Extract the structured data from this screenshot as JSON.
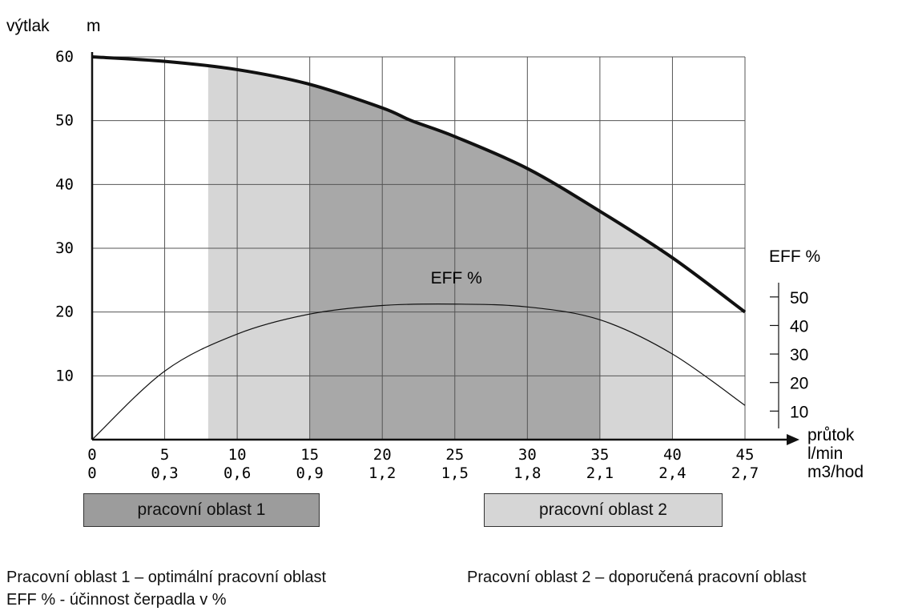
{
  "chart_data": {
    "type": "line",
    "y_label": "výtlak",
    "y_unit": "m",
    "y_ticks": [
      0,
      10,
      20,
      30,
      40,
      50,
      60
    ],
    "ylim": [
      0,
      60
    ],
    "y2_label": "EFF %",
    "y2_ticks": [
      10,
      20,
      30,
      40,
      50
    ],
    "y2_range": [
      0,
      55
    ],
    "x_label": "průtok",
    "x_units": [
      "l/min",
      "m3/hod"
    ],
    "x_ticks": [
      0,
      5,
      10,
      15,
      20,
      25,
      30,
      35,
      40,
      45
    ],
    "x_ticks_secondary": [
      "0",
      "0,3",
      "0,6",
      "0,9",
      "1,2",
      "1,5",
      "1,8",
      "2,1",
      "2,4",
      "2,7"
    ],
    "xlim": [
      0,
      45
    ],
    "grid": true,
    "series": [
      {
        "name": "výtlak",
        "axis": "left",
        "x": [
          0,
          5,
          10,
          15,
          20,
          22,
          25,
          30,
          35,
          40,
          45
        ],
        "y": [
          60,
          59.3,
          58,
          55.7,
          52,
          50,
          47.5,
          42.5,
          35.8,
          28.5,
          20
        ]
      },
      {
        "name": "EFF %",
        "axis": "right",
        "x": [
          0,
          5,
          10,
          15,
          20,
          25,
          30,
          35,
          40,
          45
        ],
        "y": [
          0,
          24,
          37,
          44,
          47,
          47.5,
          46.5,
          42,
          30,
          12
        ]
      }
    ],
    "regions": [
      {
        "name": "pracovní oblast 2",
        "x_start": 8,
        "x_end": 40,
        "color": "#d6d6d6"
      },
      {
        "name": "pracovní oblast 1",
        "x_start": 15,
        "x_end": 35,
        "color": "#a8a8a8"
      }
    ],
    "annotations": [
      {
        "text": "EFF %",
        "x": 24,
        "y": 24.5
      }
    ]
  },
  "legend": {
    "zone1_label": "pracovní oblast 1",
    "zone2_label": "pracovní oblast 2",
    "zone1_color": "#9c9c9c",
    "zone2_color": "#d6d6d6"
  },
  "notes": {
    "zone1": "Pracovní oblast 1 – optimální pracovní oblast",
    "zone2": "Pracovní oblast 2 – doporučená pracovní oblast",
    "eff": "EFF % - účinnost čerpadla v %"
  }
}
